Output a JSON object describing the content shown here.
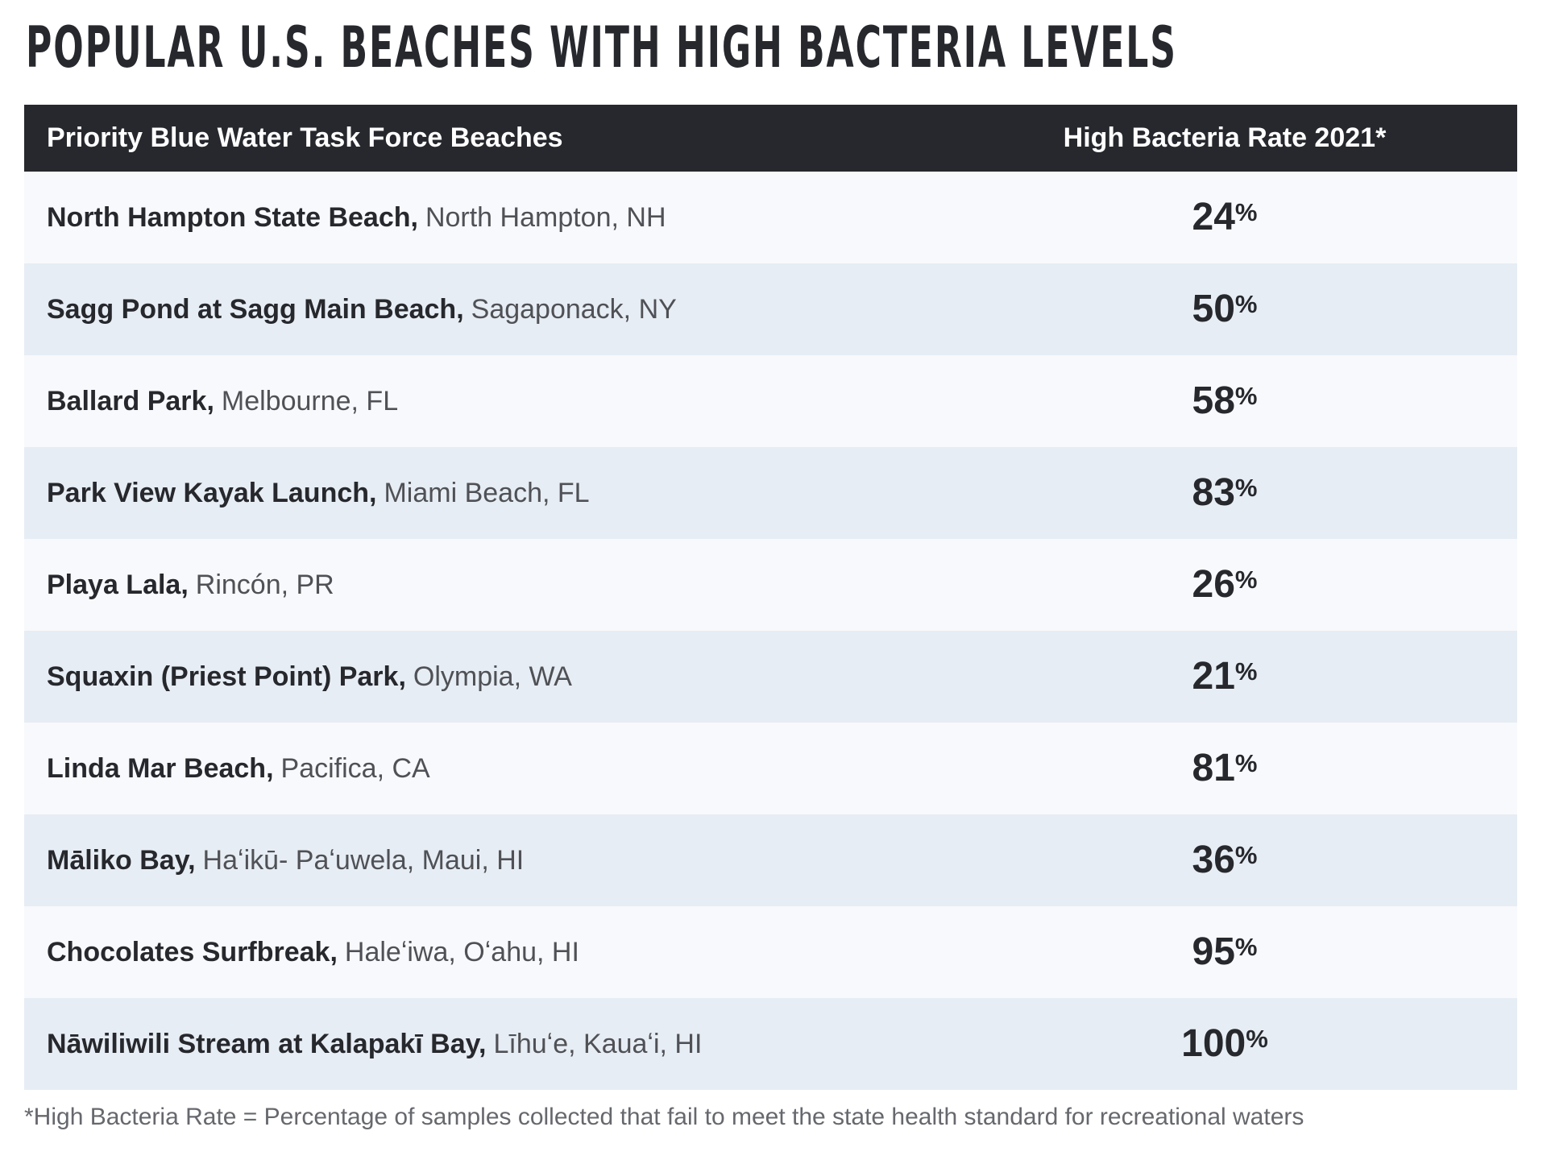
{
  "page": {
    "title": "POPULAR U.S. BEACHES WITH HIGH BACTERIA LEVELS",
    "footnote": "*High Bacteria Rate = Percentage of samples collected that fail to meet the state health standard for recreational waters"
  },
  "table": {
    "header": {
      "beaches_label": "Priority Blue Water Task Force Beaches",
      "rate_label": "High Bacteria Rate 2021*"
    },
    "percent_sign": "%",
    "rows": [
      {
        "name": "North Hampton State Beach,",
        "location": "North Hampton, NH",
        "rate": "24"
      },
      {
        "name": "Sagg Pond at Sagg Main Beach,",
        "location": "Sagaponack, NY",
        "rate": "50"
      },
      {
        "name": "Ballard Park,",
        "location": "Melbourne, FL",
        "rate": "58"
      },
      {
        "name": "Park View Kayak Launch,",
        "location": "Miami Beach, FL",
        "rate": "83"
      },
      {
        "name": "Playa Lala,",
        "location": "Rincón, PR",
        "rate": "26"
      },
      {
        "name": "Squaxin (Priest Point) Park,",
        "location": "Olympia, WA",
        "rate": "21"
      },
      {
        "name": "Linda Mar Beach,",
        "location": "Pacifica, CA",
        "rate": "81"
      },
      {
        "name": "Māliko Bay,",
        "location": "Haʻikū- Paʻuwela, Maui, HI",
        "rate": "36"
      },
      {
        "name": "Chocolates Surfbreak,",
        "location": "Haleʻiwa, Oʻahu, HI",
        "rate": "95"
      },
      {
        "name": "Nāwiliwili Stream at Kalapakī Bay,",
        "location": "Līhuʻe, Kauaʻi, HI",
        "rate": "100"
      }
    ]
  },
  "colors": {
    "header_bg": "#26282d",
    "row_light": "#f8f9fc",
    "row_shaded": "#e7edf4",
    "title_text": "#26282d",
    "location_text": "#4f5156",
    "footnote_text": "#66686d"
  },
  "chart_data": {
    "type": "table",
    "title": "POPULAR U.S. BEACHES WITH HIGH BACTERIA LEVELS",
    "columns": [
      "Priority Blue Water Task Force Beaches",
      "High Bacteria Rate 2021*"
    ],
    "rows": [
      [
        "North Hampton State Beach, North Hampton, NH",
        24
      ],
      [
        "Sagg Pond at Sagg Main Beach, Sagaponack, NY",
        50
      ],
      [
        "Ballard Park, Melbourne, FL",
        58
      ],
      [
        "Park View Kayak Launch, Miami Beach, FL",
        83
      ],
      [
        "Playa Lala, Rincón, PR",
        26
      ],
      [
        "Squaxin (Priest Point) Park, Olympia, WA",
        21
      ],
      [
        "Linda Mar Beach, Pacifica, CA",
        81
      ],
      [
        "Māliko Bay, Haʻikū- Paʻuwela, Maui, HI",
        36
      ],
      [
        "Chocolates Surfbreak, Haleʻiwa, Oʻahu, HI",
        95
      ],
      [
        "Nāwiliwili Stream at Kalapakī Bay, Līhuʻe, Kauaʻi, HI",
        100
      ]
    ],
    "value_unit": "%",
    "footnote": "*High Bacteria Rate = Percentage of samples collected that fail to meet the state health standard for recreational waters"
  }
}
